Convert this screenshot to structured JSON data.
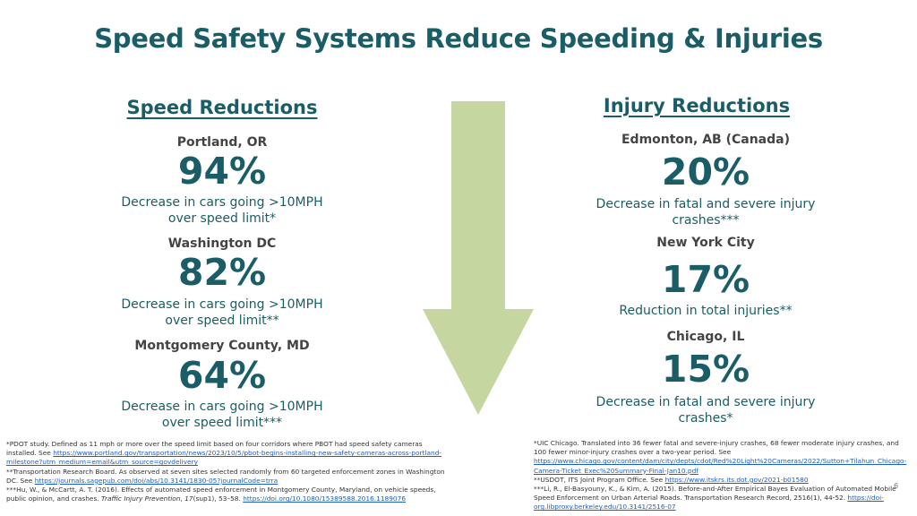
{
  "title": "Speed Safety Systems Reduce Speeding & Injuries",
  "left": {
    "heading": "Speed Reductions",
    "items": [
      {
        "place": "Portland, OR",
        "value": "94%",
        "desc1": "Decrease in cars going >10MPH",
        "desc2": "over speed limit*"
      },
      {
        "place": "Washington DC",
        "value": "82%",
        "desc1": "Decrease in cars going >10MPH",
        "desc2": "over speed limit**"
      },
      {
        "place": "Montgomery County, MD",
        "value": "64%",
        "desc1": "Decrease in cars going >10MPH",
        "desc2": "over speed limit***"
      }
    ]
  },
  "right": {
    "heading": "Injury Reductions",
    "items": [
      {
        "place": "Edmonton, AB (Canada)",
        "value": "20%",
        "desc1": "Decrease in fatal and severe injury",
        "desc2": "crashes***"
      },
      {
        "place": "New York City",
        "value": "17%",
        "desc1": "Reduction in total injuries**",
        "desc2": ""
      },
      {
        "place": "Chicago, IL",
        "value": "15%",
        "desc1": "Decrease in fatal and severe injury",
        "desc2": "crashes*"
      }
    ]
  },
  "arrow_color": "#c5d6a0",
  "footnotes_left": {
    "n1": "*PDOT study. Defined as 11 mph or more over the speed limit based on four corridors where PBOT had speed safety cameras installed. See ",
    "n1_link": "https://www.portland.gov/transportation/news/2023/10/5/pbot-begins-installing-new-safety-cameras-across-portland-milestone?utm_medium=email&utm_source=govdelivery",
    "n2": "**Transportation Research Board. As observed at seven sites selected randomly from 60 targeted enforcement zones in Washington DC. See ",
    "n2_link": "https://journals.sagepub.com/doi/abs/10.3141/1830-05?journalCode=trra",
    "n3a": "***Hu, W., & McCartt, A. T. (2016). Effects of automated speed enforcement in Montgomery County, Maryland, on vehicle speeds, public opinion, and crashes. ",
    "n3_journal": "Traffic Injury Prevention",
    "n3_sep": ", ",
    "n3_vol": "17",
    "n3b": "(sup1), 53–58. ",
    "n3_link": "https://doi.org/10.1080/15389588.2016.1189076"
  },
  "footnotes_right": {
    "n1": "*UIC Chicago. Translated into 36 fewer fatal and severe-injury crashes, 68 fewer moderate injury crashes, and 100 fewer minor-injury crashes over a two-year period. See ",
    "n1_link": "https://www.chicago.gov/content/dam/city/depts/cdot/Red%20Light%20Cameras/2022/Sutton+Tilahun_Chicago-Camera-Ticket_Exec%20Summary-Final-Jan10.pdf",
    "n2": "**USDOT, ITS Joint Program Office. See ",
    "n2_link": "https://www.itskrs.its.dot.gov/2021-b01580",
    "n3": "***Li, R., El-Basyouny, K., & Kim, A. (2015). Before-and-After Empirical Bayes Evaluation of Automated Mobile Speed Enforcement on Urban Arterial Roads. Transportation Research Record, 2516(1), 44-52. ",
    "n3_link": "https://doi-org.libproxy.berkeley.edu/10.3141/2516-07"
  },
  "page_number": "6"
}
